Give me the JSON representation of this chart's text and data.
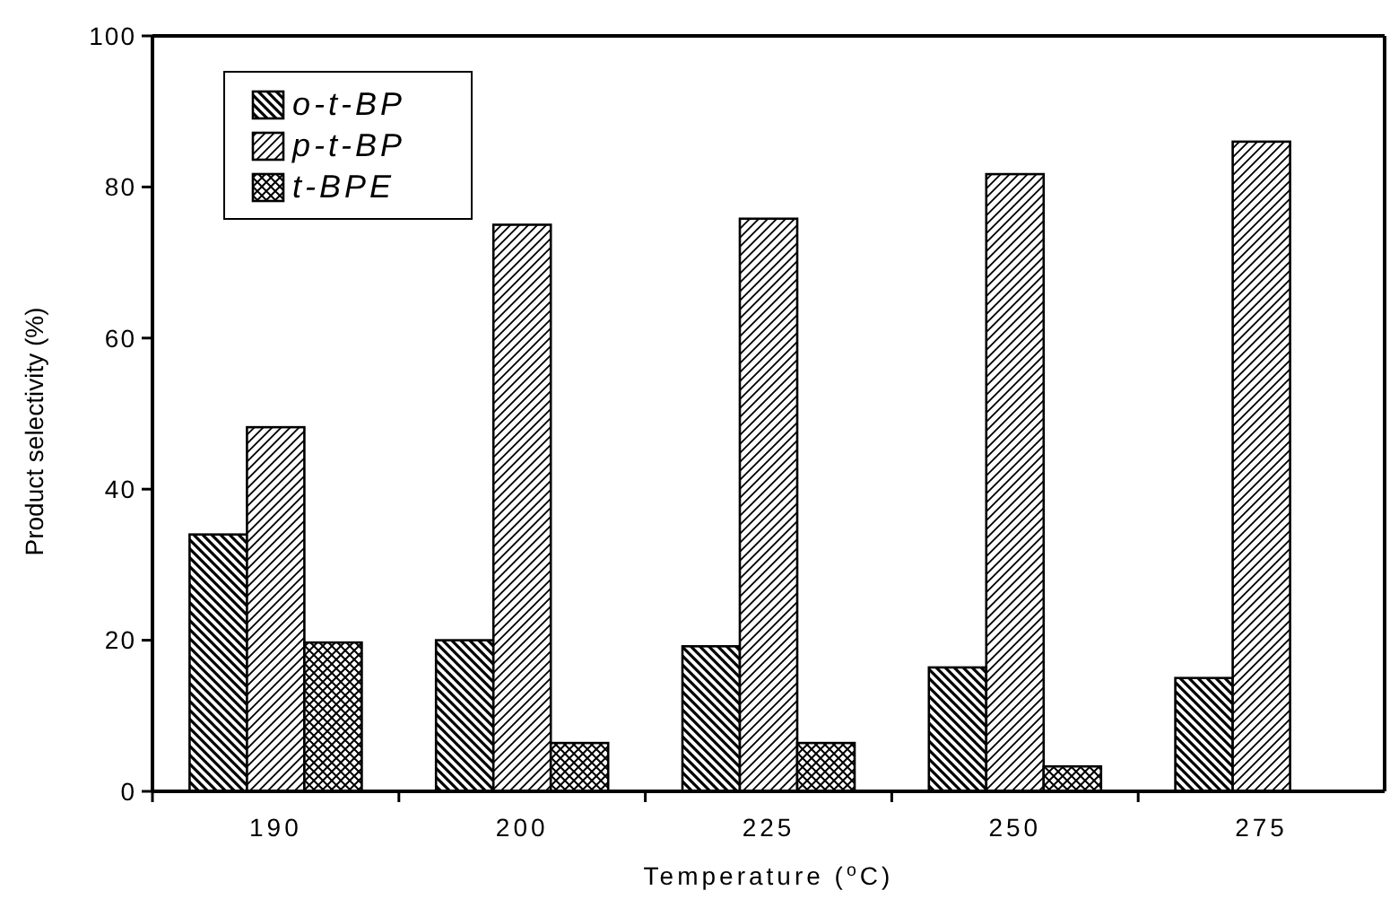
{
  "chart_data": {
    "type": "bar",
    "xlabel": "Temperature ($^{o}$C)",
    "ylabel": "Product selectivity (%)",
    "categories": [
      "190",
      "200",
      "225",
      "250",
      "275"
    ],
    "series": [
      {
        "name": "o-t-BP",
        "color": "#000000",
        "values": [
          34,
          20,
          19.2,
          16.4,
          15
        ]
      },
      {
        "name": "p-t-BP",
        "color": "#000000",
        "values": [
          48.2,
          75,
          75.8,
          81.7,
          86
        ]
      },
      {
        "name": "t-BPE",
        "color": "#000000",
        "values": [
          19.7,
          6.4,
          6.4,
          3.3,
          null
        ]
      }
    ],
    "ylim": [
      0,
      100
    ],
    "yticks": [
      0,
      20,
      40,
      60,
      80,
      100
    ],
    "legend": "top left"
  }
}
